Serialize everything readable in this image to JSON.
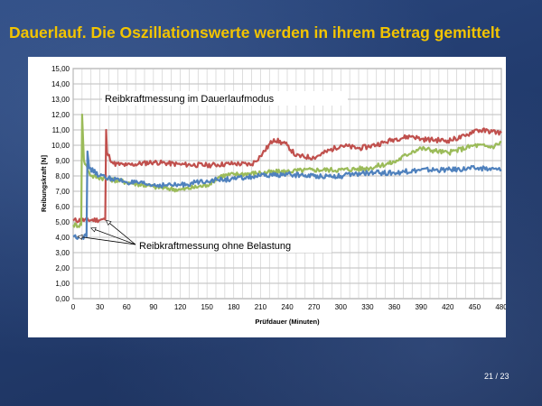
{
  "slide": {
    "title": "Dauerlauf. Die Oszillationswerte werden in ihrem Betrag gemittelt",
    "page_number": "21 / 23"
  },
  "colors": {
    "red": "#c0504d",
    "green": "#9bbb59",
    "blue": "#4f81bd",
    "title": "#f3c400"
  },
  "chart_data": {
    "type": "line",
    "title": "",
    "xlabel": "Prüfdauer (Minuten)",
    "ylabel": "Reibungskraft [N]",
    "xlim": [
      0,
      480
    ],
    "ylim": [
      0,
      15
    ],
    "x_ticks": [
      0,
      30,
      60,
      90,
      120,
      150,
      180,
      210,
      240,
      270,
      300,
      330,
      360,
      390,
      420,
      450,
      480
    ],
    "y_ticks": [
      "0,00",
      "1,00",
      "2,00",
      "3,00",
      "4,00",
      "5,00",
      "6,00",
      "7,00",
      "8,00",
      "9,00",
      "10,00",
      "11,00",
      "12,00",
      "13,00",
      "14,00",
      "15,00"
    ],
    "grid": true,
    "legend": "none",
    "annotations": [
      {
        "text": "Reibkraftmessung im Dauerlaufmodus"
      },
      {
        "text": "Reibkraftmessung ohne Belastung"
      }
    ],
    "series": [
      {
        "color": "#c0504d",
        "x": [
          0,
          36,
          37,
          38,
          45,
          60,
          90,
          120,
          150,
          180,
          200,
          210,
          225,
          240,
          250,
          270,
          300,
          320,
          330,
          350,
          360,
          380,
          390,
          420,
          440,
          450,
          470,
          480
        ],
        "y": [
          5.1,
          5.15,
          11.0,
          9.5,
          8.8,
          8.7,
          8.9,
          8.75,
          8.7,
          8.8,
          8.75,
          9.3,
          10.4,
          10.0,
          9.3,
          9.2,
          10.0,
          9.8,
          9.9,
          10.2,
          10.4,
          10.6,
          10.4,
          10.3,
          10.6,
          11.0,
          10.9,
          10.8
        ]
      },
      {
        "color": "#9bbb59",
        "x": [
          0,
          9,
          10,
          12,
          20,
          40,
          60,
          90,
          120,
          150,
          165,
          180,
          210,
          240,
          270,
          300,
          330,
          360,
          380,
          390,
          420,
          450,
          470,
          480
        ],
        "y": [
          4.8,
          4.8,
          12.0,
          9.0,
          8.0,
          7.8,
          7.6,
          7.3,
          7.1,
          7.4,
          8.0,
          8.1,
          8.2,
          8.3,
          8.4,
          8.4,
          8.5,
          8.9,
          9.6,
          9.8,
          9.5,
          10.0,
          9.9,
          10.2
        ]
      },
      {
        "color": "#4f81bd",
        "x": [
          0,
          15,
          16,
          18,
          30,
          60,
          90,
          120,
          150,
          180,
          210,
          240,
          270,
          300,
          330,
          360,
          390,
          420,
          450,
          480
        ],
        "y": [
          4.05,
          4.05,
          9.6,
          8.5,
          8.0,
          7.6,
          7.4,
          7.4,
          7.7,
          7.8,
          8.0,
          8.1,
          8.0,
          8.0,
          8.2,
          8.2,
          8.4,
          8.4,
          8.5,
          8.4
        ]
      }
    ]
  }
}
